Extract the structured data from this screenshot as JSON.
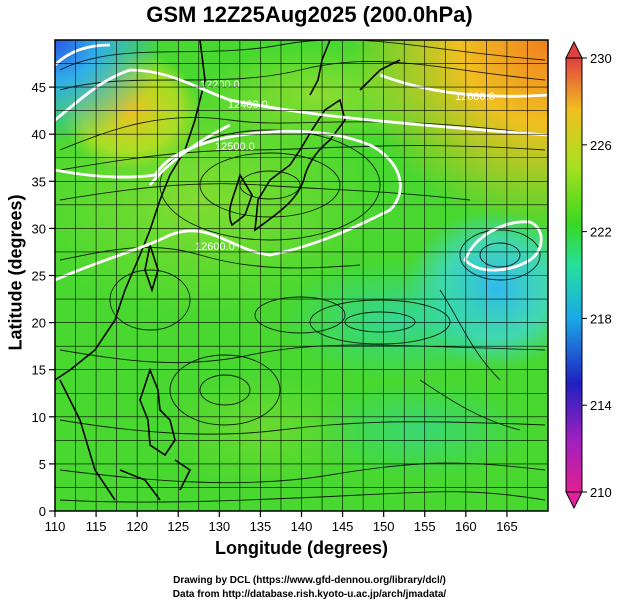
{
  "title": "GSM 12Z25Aug2025 (200.0hPa)",
  "xlabel": "Longitude (degrees)",
  "ylabel": "Latitude  (degrees)",
  "credits": [
    "Drawing by DCL (https://www.gfd-dennou.org/library/dcl/)",
    "Data from http://database.rish.kyoto-u.ac.jp/arch/jmadata/"
  ],
  "map": {
    "lon_range": [
      110,
      170
    ],
    "lat_range": [
      0,
      50
    ],
    "x_ticks": [
      "110",
      "115",
      "120",
      "125",
      "130",
      "135",
      "140",
      "145",
      "150",
      "155",
      "160",
      "165"
    ],
    "y_ticks": [
      "0",
      "5",
      "10",
      "15",
      "20",
      "25",
      "30",
      "35",
      "40",
      "45"
    ],
    "shaded_field": "temperature (K)",
    "contour_field": "geopotential height (m)",
    "contour_labels": [
      "12200.0",
      "12400.0",
      "12500.0",
      "12600.0",
      "12600.0"
    ],
    "vectors": "streamlines",
    "grid": true
  },
  "colorbar": {
    "min": 210,
    "max": 230,
    "labels": [
      "210",
      "214",
      "218",
      "222",
      "226",
      "230"
    ],
    "colors": [
      "#e0208f",
      "#2020c0",
      "#1aa8e8",
      "#24e0a0",
      "#3ad820",
      "#a8e020",
      "#f0c020",
      "#e04040"
    ]
  }
}
